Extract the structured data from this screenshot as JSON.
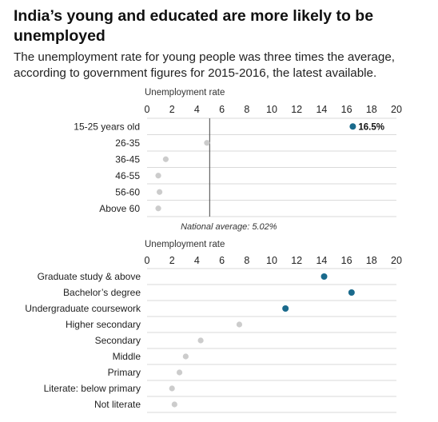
{
  "header": {
    "title": "India’s young and educated are more likely to be unemployed",
    "subtitle": "The unemployment rate for young people was three times the average, according to government figures for 2015-2016, the latest available."
  },
  "colors": {
    "highlight": "#1a6a8c",
    "muted": "#cccccc",
    "gridline": "#dadada",
    "average_line": "#444444"
  },
  "chart_data": [
    {
      "type": "scatter",
      "xlabel": "Unemployment rate",
      "xlim": [
        0,
        20
      ],
      "xticks": [
        0,
        2,
        4,
        6,
        8,
        10,
        12,
        14,
        16,
        18,
        20
      ],
      "categories": [
        "15-25 years old",
        "26-35",
        "36-45",
        "46-55",
        "56-60",
        "Above 60"
      ],
      "values": [
        16.5,
        4.8,
        1.5,
        0.9,
        1.0,
        0.9
      ],
      "highlighted": [
        true,
        false,
        false,
        false,
        false,
        false
      ],
      "data_labels": [
        "16.5%",
        "",
        "",
        "",
        "",
        ""
      ],
      "reference_line": {
        "value": 5.02,
        "label": "National average: 5.02%"
      },
      "grid": "horizontal row lines"
    },
    {
      "type": "scatter",
      "xlabel": "Unemployment rate",
      "xlim": [
        0,
        20
      ],
      "xticks": [
        0,
        2,
        4,
        6,
        8,
        10,
        12,
        14,
        16,
        18,
        20
      ],
      "categories": [
        "Graduate study & above",
        "Bachelor’s degree",
        "Undergraduate coursework",
        "Higher secondary",
        "Secondary",
        "Middle",
        "Primary",
        "Literate: below primary",
        "Not literate"
      ],
      "values": [
        14.2,
        16.4,
        11.1,
        7.4,
        4.3,
        3.1,
        2.6,
        2.0,
        2.2
      ],
      "highlighted": [
        true,
        true,
        true,
        false,
        false,
        false,
        false,
        false,
        false
      ],
      "grid": "horizontal row lines"
    }
  ]
}
